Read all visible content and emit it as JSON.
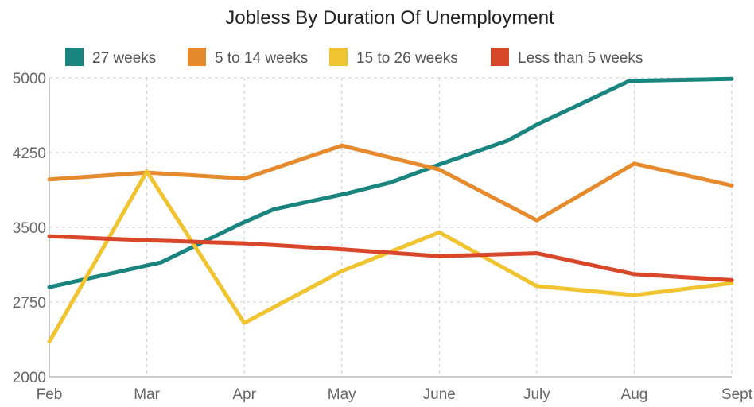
{
  "chart_data": {
    "type": "line",
    "title": "Jobless By Duration Of Unemployment",
    "xlabel": "",
    "ylabel": "",
    "categories": [
      "Feb",
      "Mar",
      "Apr",
      "May",
      "June",
      "July",
      "Aug",
      "Sept"
    ],
    "ylim": [
      2000,
      5000
    ],
    "yticks": [
      2000,
      2750,
      3500,
      4250,
      5000
    ],
    "grid": true,
    "legend_position": "top",
    "series": [
      {
        "name": "27 weeks",
        "color": "#1a847f",
        "x": [
          0,
          1.15,
          1.95,
          2.3,
          3.05,
          3.5,
          4,
          4.7,
          5,
          5.95,
          7
        ],
        "values": [
          2900,
          3150,
          3530,
          3680,
          3840,
          3950,
          4130,
          4370,
          4530,
          4970,
          4990
        ]
      },
      {
        "name": "5 to 14 weeks",
        "color": "#e68a2e",
        "x": [
          0,
          1,
          2,
          3,
          4,
          5,
          6,
          7
        ],
        "values": [
          3980,
          4050,
          3990,
          4320,
          4080,
          3570,
          4140,
          3920
        ]
      },
      {
        "name": "15 to 26 weeks",
        "color": "#f0c330",
        "x": [
          0,
          1,
          2,
          3,
          4,
          5,
          6,
          7
        ],
        "values": [
          2350,
          4060,
          2540,
          3060,
          3450,
          2910,
          2820,
          2940
        ]
      },
      {
        "name": "Less than 5 weeks",
        "color": "#d9472b",
        "x": [
          0,
          1,
          2,
          3,
          4,
          5,
          6,
          7
        ],
        "values": [
          3410,
          3370,
          3340,
          3280,
          3210,
          3240,
          3030,
          2970
        ]
      }
    ]
  }
}
